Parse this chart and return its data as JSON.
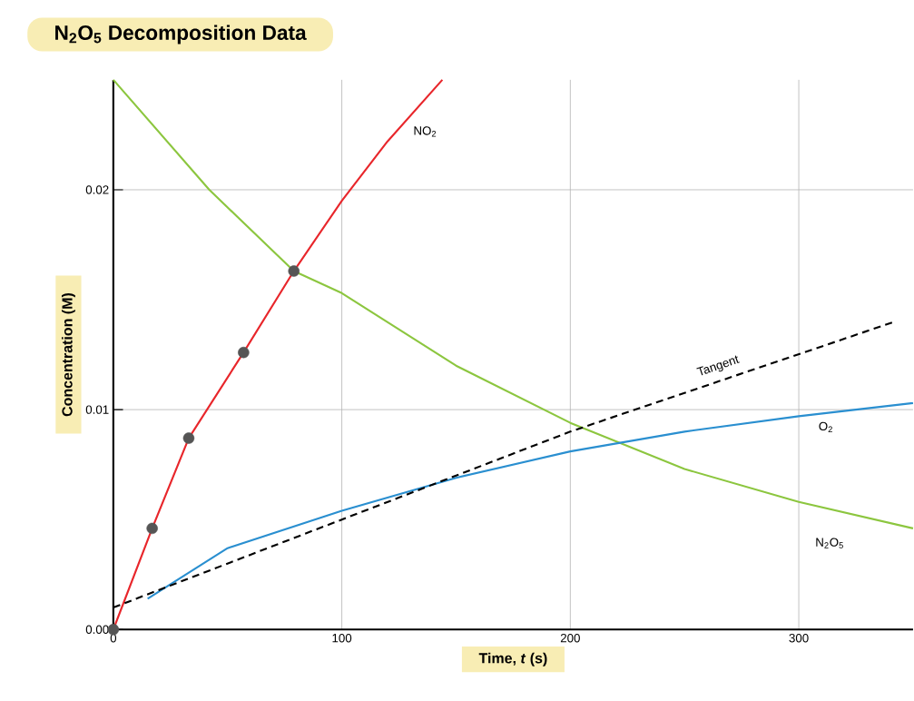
{
  "chart_data": {
    "type": "line",
    "title": "N$_{2}$O$_{5}$ Decomposition Data",
    "xlabel": "Time, *t* (s)",
    "ylabel": "Concentration (M)",
    "xlim": [
      0,
      350
    ],
    "ylim": [
      0,
      0.025
    ],
    "xticks": [
      0,
      100,
      200,
      300
    ],
    "yticks": [
      {
        "value": 0,
        "label": "0.00"
      },
      0.01,
      0.02
    ],
    "grid": true,
    "marker": "none",
    "series": [
      {
        "name": "NO$_{2}$",
        "color": "#e8262b",
        "x": [
          0,
          17,
          33,
          57,
          79,
          100,
          120,
          144
        ],
        "values": [
          0,
          0.0046,
          0.0087,
          0.0126,
          0.0163,
          0.0195,
          0.0222,
          0.025
        ]
      },
      {
        "name": "N$_{2}$O$_{5}$",
        "color": "#8cc63f",
        "x": [
          0,
          42,
          79,
          100,
          150,
          200,
          250,
          300,
          350
        ],
        "values": [
          0.025,
          0.02,
          0.0163,
          0.0153,
          0.012,
          0.0094,
          0.0073,
          0.0058,
          0.0046
        ]
      },
      {
        "name": "O$_{2}$",
        "color": "#2a8fd0",
        "x": [
          15,
          50,
          100,
          150,
          200,
          250,
          300,
          350
        ],
        "values": [
          0.0014,
          0.0037,
          0.0054,
          0.0069,
          0.0081,
          0.009,
          0.0097,
          0.0103
        ]
      },
      {
        "name": "Tangent",
        "color": "#000000",
        "line_style": "dashed",
        "x": [
          0,
          200,
          342
        ],
        "values": [
          0.001,
          0.009,
          0.014
        ]
      },
      {
        "type": "scatter",
        "marker": "circle",
        "color": "#555555",
        "x": [
          0,
          17,
          33,
          57,
          79
        ],
        "values": [
          0,
          0.0046,
          0.0087,
          0.0126,
          0.0163
        ]
      }
    ]
  }
}
